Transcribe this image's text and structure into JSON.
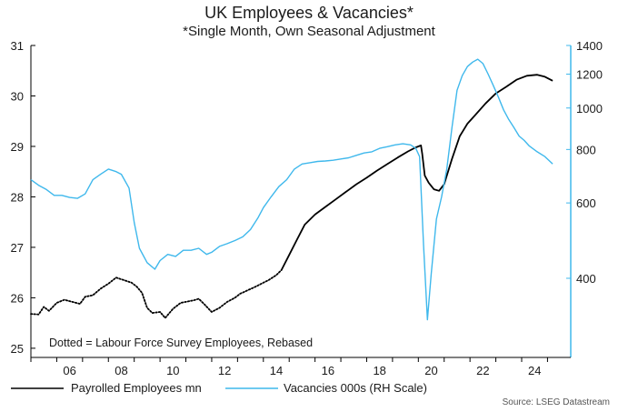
{
  "chart_data": {
    "type": "line",
    "title": "UK Employees & Vacancies*",
    "subtitle": "*Single Month, Own Seasonal Adjustment",
    "annotation": "Dotted = Labour Force Survey Employees, Rebased",
    "source": "Source: LSEG Datastream",
    "x_range": [
      2005.0,
      2025.9
    ],
    "x_ticks": [
      {
        "value": 2006,
        "label": "06"
      },
      {
        "value": 2008,
        "label": "08"
      },
      {
        "value": 2010,
        "label": "10"
      },
      {
        "value": 2012,
        "label": "12"
      },
      {
        "value": 2014,
        "label": "14"
      },
      {
        "value": 2016,
        "label": "16"
      },
      {
        "value": 2018,
        "label": "18"
      },
      {
        "value": 2020,
        "label": "20"
      },
      {
        "value": 2022,
        "label": "22"
      },
      {
        "value": 2024,
        "label": "24"
      }
    ],
    "y_left": {
      "scale": "linear",
      "range": [
        24.8,
        31.0
      ],
      "ticks": [
        25,
        26,
        27,
        28,
        29,
        30,
        31
      ]
    },
    "y_right": {
      "scale": "log",
      "range": [
        260,
        1400
      ],
      "ticks": [
        400,
        600,
        800,
        1000,
        1200,
        1400
      ]
    },
    "grid": false,
    "legend_position": "bottom-left",
    "colors": {
      "employees": "#000000",
      "vacancies": "#3fb8ec",
      "axis_right": "#3fb8ec",
      "axis_left": "#000000"
    },
    "series": [
      {
        "name": "Labour Force Survey Employees, Rebased",
        "axis": "left",
        "style": "dotted",
        "color": "#000000",
        "x": [
          2005.0,
          2005.3,
          2005.5,
          2005.7,
          2006.0,
          2006.3,
          2006.6,
          2006.9,
          2007.1,
          2007.4,
          2007.7,
          2008.0,
          2008.3,
          2008.6,
          2008.9,
          2009.1,
          2009.3,
          2009.5,
          2009.7,
          2010.0,
          2010.2,
          2010.5,
          2010.8,
          2011.0,
          2011.3,
          2011.5,
          2011.7,
          2012.0,
          2012.3,
          2012.6,
          2012.9,
          2013.1,
          2013.4,
          2013.7,
          2014.0,
          2014.2,
          2014.5,
          2014.7
        ],
        "values": [
          25.68,
          25.67,
          25.82,
          25.74,
          25.9,
          25.96,
          25.92,
          25.88,
          26.02,
          26.05,
          26.18,
          26.28,
          26.4,
          26.35,
          26.3,
          26.22,
          26.1,
          25.8,
          25.7,
          25.72,
          25.6,
          25.78,
          25.9,
          25.92,
          25.95,
          25.98,
          25.88,
          25.72,
          25.8,
          25.92,
          26.0,
          26.08,
          26.15,
          26.22,
          26.3,
          26.35,
          26.45,
          26.55
        ]
      },
      {
        "name": "Payrolled Employees mn",
        "axis": "left",
        "style": "solid",
        "color": "#000000",
        "x": [
          2014.7,
          2015.0,
          2015.3,
          2015.6,
          2016.0,
          2016.4,
          2016.8,
          2017.2,
          2017.6,
          2018.0,
          2018.4,
          2018.8,
          2019.2,
          2019.6,
          2019.9,
          2020.1,
          2020.15,
          2020.25,
          2020.4,
          2020.6,
          2020.8,
          2021.0,
          2021.3,
          2021.6,
          2021.9,
          2022.2,
          2022.6,
          2023.0,
          2023.4,
          2023.8,
          2024.2,
          2024.6,
          2024.9,
          2025.2
        ],
        "values": [
          26.55,
          26.85,
          27.15,
          27.45,
          27.65,
          27.8,
          27.95,
          28.1,
          28.25,
          28.38,
          28.52,
          28.65,
          28.78,
          28.9,
          28.98,
          29.02,
          28.85,
          28.42,
          28.28,
          28.15,
          28.12,
          28.25,
          28.75,
          29.2,
          29.45,
          29.62,
          29.85,
          30.05,
          30.18,
          30.32,
          30.4,
          30.42,
          30.38,
          30.3
        ]
      },
      {
        "name": "Vacancies 000s (RH Scale)",
        "axis": "right",
        "style": "solid",
        "color": "#3fb8ec",
        "x": [
          2005.0,
          2005.3,
          2005.6,
          2005.9,
          2006.2,
          2006.5,
          2006.8,
          2007.1,
          2007.4,
          2007.7,
          2008.0,
          2008.3,
          2008.5,
          2008.8,
          2009.0,
          2009.2,
          2009.5,
          2009.8,
          2010.0,
          2010.3,
          2010.6,
          2010.9,
          2011.2,
          2011.5,
          2011.8,
          2012.0,
          2012.3,
          2012.6,
          2012.9,
          2013.2,
          2013.5,
          2013.8,
          2014.0,
          2014.3,
          2014.6,
          2014.9,
          2015.2,
          2015.5,
          2015.8,
          2016.1,
          2016.4,
          2016.7,
          2017.0,
          2017.3,
          2017.6,
          2017.9,
          2018.2,
          2018.5,
          2018.8,
          2019.1,
          2019.4,
          2019.7,
          2019.9,
          2020.05,
          2020.2,
          2020.35,
          2020.5,
          2020.7,
          2020.9,
          2021.1,
          2021.3,
          2021.5,
          2021.7,
          2021.9,
          2022.1,
          2022.3,
          2022.5,
          2022.7,
          2022.9,
          2023.1,
          2023.3,
          2023.5,
          2023.7,
          2023.9,
          2024.1,
          2024.3,
          2024.6,
          2024.9,
          2025.2
        ],
        "values": [
          680,
          660,
          645,
          625,
          625,
          618,
          615,
          630,
          680,
          700,
          720,
          710,
          700,
          650,
          540,
          470,
          435,
          420,
          440,
          455,
          450,
          465,
          465,
          470,
          455,
          460,
          475,
          482,
          490,
          500,
          520,
          555,
          585,
          620,
          655,
          680,
          720,
          740,
          745,
          750,
          752,
          755,
          760,
          765,
          775,
          785,
          790,
          805,
          812,
          820,
          825,
          820,
          805,
          770,
          480,
          320,
          410,
          550,
          620,
          720,
          900,
          1100,
          1190,
          1250,
          1280,
          1300,
          1270,
          1200,
          1130,
          1060,
          990,
          940,
          900,
          860,
          840,
          815,
          790,
          770,
          740
        ]
      }
    ]
  },
  "legend": {
    "items": [
      {
        "label": "Payrolled Employees mn",
        "color": "#000000"
      },
      {
        "label": "Vacancies 000s (RH Scale)",
        "color": "#3fb8ec"
      }
    ]
  }
}
